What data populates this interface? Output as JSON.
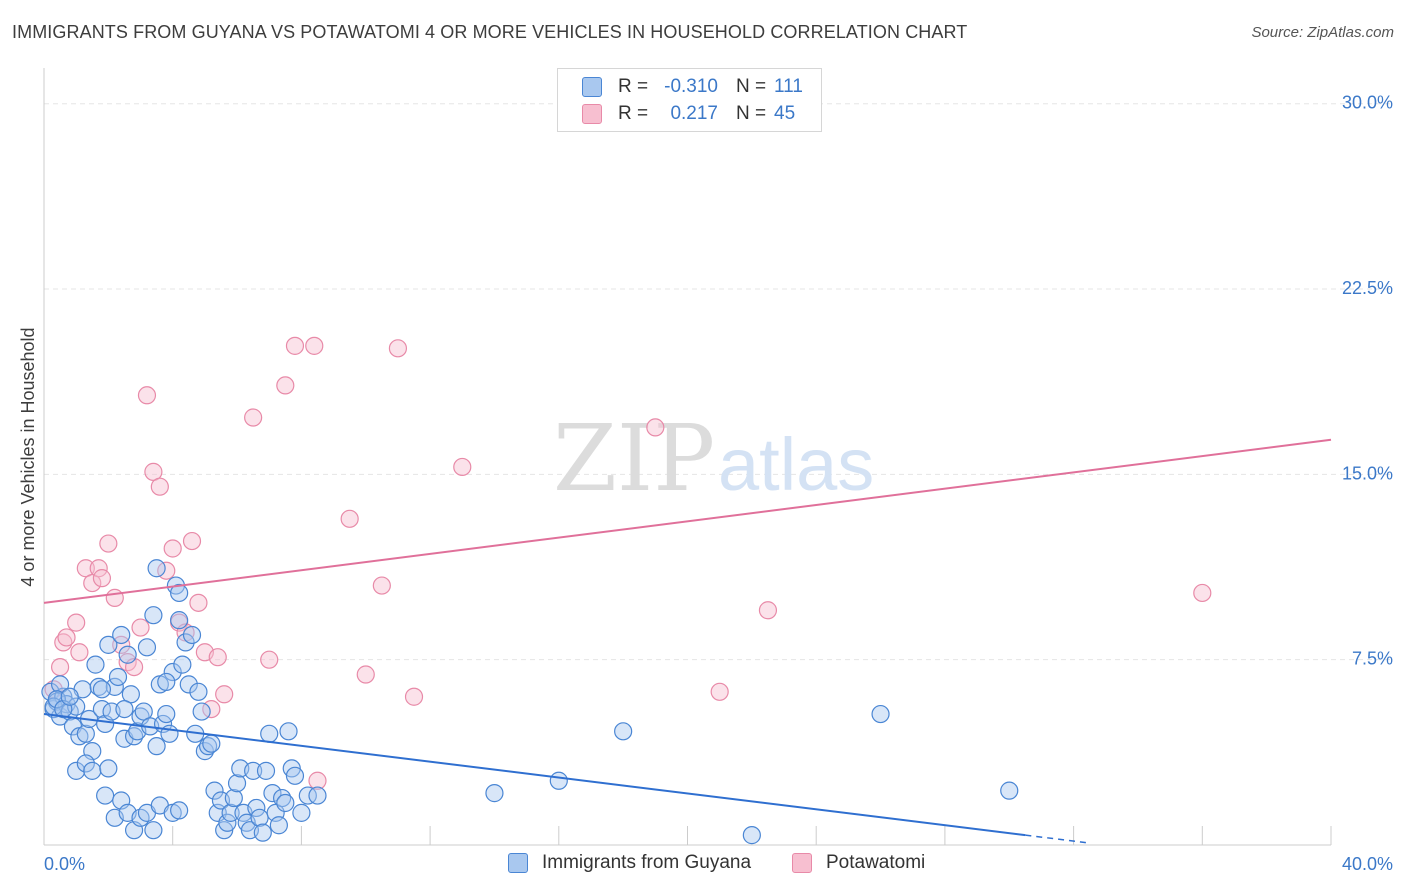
{
  "header": {
    "title": "IMMIGRANTS FROM GUYANA VS POTAWATOMI 4 OR MORE VEHICLES IN HOUSEHOLD CORRELATION CHART",
    "source": "Source: ZipAtlas.com"
  },
  "watermark": {
    "zip": "ZIP",
    "atlas": "atlas"
  },
  "colors": {
    "blue_fill": "#a9c8ef",
    "blue_stroke": "#4a86d4",
    "blue_line": "#2f6fd0",
    "pink_fill": "#f7bfd0",
    "pink_stroke": "#e88aa8",
    "pink_line": "#e0709a",
    "tick_text": "#3b78c8",
    "grid": "#e5e5e5"
  },
  "legend": {
    "rows": [
      {
        "r_label": "R =",
        "r_value": "-0.310",
        "n_label": "N =",
        "n_value": "111"
      },
      {
        "r_label": "R =",
        "r_value": "0.217",
        "n_label": "N =",
        "n_value": "45"
      }
    ]
  },
  "bottom_legend": {
    "series1": "Immigrants from Guyana",
    "series2": "Potawatomi"
  },
  "chart_data": {
    "type": "scatter",
    "title": "IMMIGRANTS FROM GUYANA VS POTAWATOMI 4 OR MORE VEHICLES IN HOUSEHOLD CORRELATION CHART",
    "xlabel": "",
    "ylabel": "4 or more Vehicles in Household",
    "xlim": [
      0,
      40
    ],
    "ylim": [
      0,
      31
    ],
    "x_tick_labels": [
      "0.0%",
      "40.0%"
    ],
    "y_ticks": [
      7.5,
      15.0,
      22.5,
      30.0
    ],
    "y_tick_labels": [
      "7.5%",
      "15.0%",
      "22.5%",
      "30.0%"
    ],
    "grid": true,
    "legend_position": "top-center",
    "series": [
      {
        "name": "Immigrants from Guyana",
        "R": -0.31,
        "N": 111,
        "trend": {
          "x": [
            0.0,
            30.5
          ],
          "y": [
            5.3,
            0.4
          ]
        },
        "points": [
          [
            0.2,
            6.2
          ],
          [
            0.3,
            5.5
          ],
          [
            0.4,
            5.8
          ],
          [
            0.5,
            5.2
          ],
          [
            0.6,
            6.0
          ],
          [
            0.7,
            5.7
          ],
          [
            0.8,
            5.4
          ],
          [
            0.9,
            4.8
          ],
          [
            1.0,
            5.6
          ],
          [
            1.1,
            4.4
          ],
          [
            1.2,
            6.3
          ],
          [
            1.3,
            4.5
          ],
          [
            1.4,
            5.1
          ],
          [
            1.5,
            3.8
          ],
          [
            1.6,
            7.3
          ],
          [
            1.7,
            6.4
          ],
          [
            1.8,
            5.5
          ],
          [
            1.9,
            4.9
          ],
          [
            2.0,
            8.1
          ],
          [
            2.1,
            5.4
          ],
          [
            2.2,
            6.4
          ],
          [
            2.3,
            6.8
          ],
          [
            2.4,
            8.5
          ],
          [
            2.5,
            4.3
          ],
          [
            2.6,
            7.7
          ],
          [
            2.7,
            6.1
          ],
          [
            2.8,
            4.4
          ],
          [
            2.9,
            4.6
          ],
          [
            3.0,
            5.2
          ],
          [
            3.1,
            5.4
          ],
          [
            3.2,
            8.0
          ],
          [
            3.3,
            4.8
          ],
          [
            3.4,
            9.3
          ],
          [
            3.5,
            4.0
          ],
          [
            3.6,
            6.5
          ],
          [
            3.7,
            4.9
          ],
          [
            3.8,
            5.3
          ],
          [
            3.9,
            4.5
          ],
          [
            4.0,
            7.0
          ],
          [
            4.1,
            10.5
          ],
          [
            4.2,
            9.1
          ],
          [
            4.3,
            7.3
          ],
          [
            4.4,
            8.2
          ],
          [
            4.5,
            6.5
          ],
          [
            4.6,
            8.5
          ],
          [
            4.7,
            4.5
          ],
          [
            4.8,
            6.2
          ],
          [
            4.9,
            5.4
          ],
          [
            5.0,
            3.8
          ],
          [
            5.1,
            4.0
          ],
          [
            5.2,
            4.1
          ],
          [
            5.3,
            2.2
          ],
          [
            5.4,
            1.3
          ],
          [
            5.5,
            1.8
          ],
          [
            5.6,
            0.6
          ],
          [
            5.7,
            0.9
          ],
          [
            5.8,
            1.3
          ],
          [
            5.9,
            1.9
          ],
          [
            6.0,
            2.5
          ],
          [
            6.1,
            3.1
          ],
          [
            6.2,
            1.3
          ],
          [
            6.3,
            0.9
          ],
          [
            6.4,
            0.6
          ],
          [
            6.5,
            3.0
          ],
          [
            6.6,
            1.5
          ],
          [
            6.7,
            1.1
          ],
          [
            6.8,
            0.5
          ],
          [
            6.9,
            3.0
          ],
          [
            7.0,
            4.5
          ],
          [
            7.1,
            2.1
          ],
          [
            7.2,
            1.3
          ],
          [
            7.3,
            0.8
          ],
          [
            7.4,
            1.9
          ],
          [
            7.5,
            1.7
          ],
          [
            7.6,
            4.6
          ],
          [
            7.7,
            3.1
          ],
          [
            7.8,
            2.8
          ],
          [
            8.0,
            1.3
          ],
          [
            8.2,
            2.0
          ],
          [
            8.5,
            2.0
          ],
          [
            1.0,
            3.0
          ],
          [
            1.3,
            3.3
          ],
          [
            1.5,
            3.0
          ],
          [
            1.9,
            2.0
          ],
          [
            2.0,
            3.1
          ],
          [
            2.2,
            1.1
          ],
          [
            2.4,
            1.8
          ],
          [
            2.6,
            1.3
          ],
          [
            2.8,
            0.6
          ],
          [
            3.0,
            1.1
          ],
          [
            3.2,
            1.3
          ],
          [
            3.4,
            0.6
          ],
          [
            3.6,
            1.6
          ],
          [
            4.0,
            1.3
          ],
          [
            4.2,
            1.4
          ],
          [
            0.5,
            6.5
          ],
          [
            0.3,
            5.6
          ],
          [
            0.4,
            5.9
          ],
          [
            0.6,
            5.5
          ],
          [
            3.5,
            11.2
          ],
          [
            4.2,
            10.2
          ],
          [
            16.0,
            2.6
          ],
          [
            14.0,
            2.1
          ],
          [
            18.0,
            4.6
          ],
          [
            22.0,
            0.4
          ],
          [
            26.0,
            5.3
          ],
          [
            30.0,
            2.2
          ],
          [
            1.8,
            6.3
          ],
          [
            2.5,
            5.5
          ],
          [
            3.8,
            6.6
          ],
          [
            0.8,
            6.0
          ]
        ]
      },
      {
        "name": "Potawatomi",
        "R": 0.217,
        "N": 45,
        "trend": {
          "x": [
            0.0,
            40.0
          ],
          "y": [
            9.8,
            16.4
          ]
        },
        "points": [
          [
            0.3,
            6.3
          ],
          [
            0.5,
            7.2
          ],
          [
            0.6,
            8.2
          ],
          [
            0.7,
            8.4
          ],
          [
            1.0,
            9.0
          ],
          [
            1.1,
            7.8
          ],
          [
            1.3,
            11.2
          ],
          [
            1.5,
            10.6
          ],
          [
            1.7,
            11.2
          ],
          [
            1.8,
            10.8
          ],
          [
            2.0,
            12.2
          ],
          [
            2.2,
            10.0
          ],
          [
            2.4,
            8.1
          ],
          [
            2.6,
            7.4
          ],
          [
            2.8,
            7.2
          ],
          [
            3.0,
            8.8
          ],
          [
            3.2,
            18.2
          ],
          [
            3.4,
            15.1
          ],
          [
            3.6,
            14.5
          ],
          [
            3.8,
            11.1
          ],
          [
            4.0,
            12.0
          ],
          [
            4.2,
            9.0
          ],
          [
            4.4,
            8.6
          ],
          [
            4.6,
            12.3
          ],
          [
            4.8,
            9.8
          ],
          [
            5.0,
            7.8
          ],
          [
            5.2,
            5.5
          ],
          [
            5.4,
            7.6
          ],
          [
            5.6,
            6.1
          ],
          [
            6.5,
            17.3
          ],
          [
            7.0,
            7.5
          ],
          [
            7.5,
            18.6
          ],
          [
            7.8,
            20.2
          ],
          [
            8.4,
            20.2
          ],
          [
            8.5,
            2.6
          ],
          [
            9.5,
            13.2
          ],
          [
            10.0,
            6.9
          ],
          [
            10.5,
            10.5
          ],
          [
            11.0,
            20.1
          ],
          [
            11.5,
            6.0
          ],
          [
            13.0,
            15.3
          ],
          [
            19.0,
            16.9
          ],
          [
            21.0,
            6.2
          ],
          [
            22.5,
            9.5
          ],
          [
            36.0,
            10.2
          ]
        ]
      }
    ]
  }
}
